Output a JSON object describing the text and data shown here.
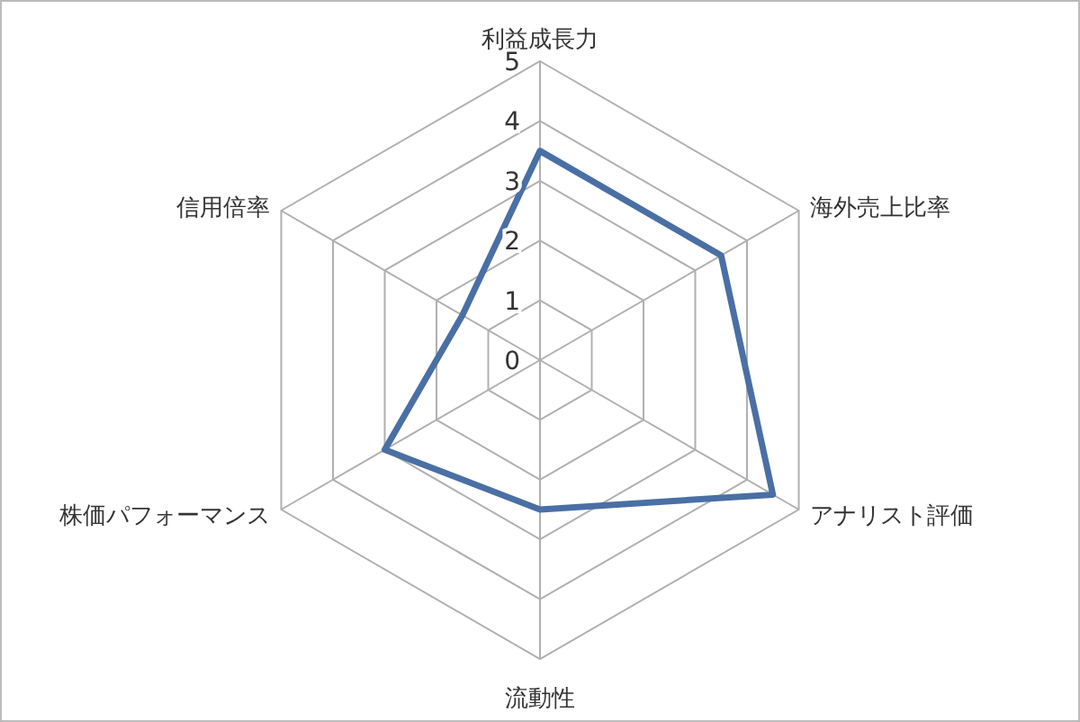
{
  "chart_data": {
    "type": "radar",
    "categories": [
      "利益成長力",
      "海外売上比率",
      "アナリスト評価",
      "流動性",
      "株価パフォーマンス",
      "信用倍率"
    ],
    "series": [
      {
        "color": "#4a6fa5",
        "values": [
          3.5,
          3.5,
          4.5,
          2.5,
          3.0,
          1.5
        ]
      }
    ],
    "ylim": [
      0,
      5
    ],
    "yticks": [
      0,
      1,
      2,
      3,
      4,
      5
    ],
    "grid": true
  }
}
